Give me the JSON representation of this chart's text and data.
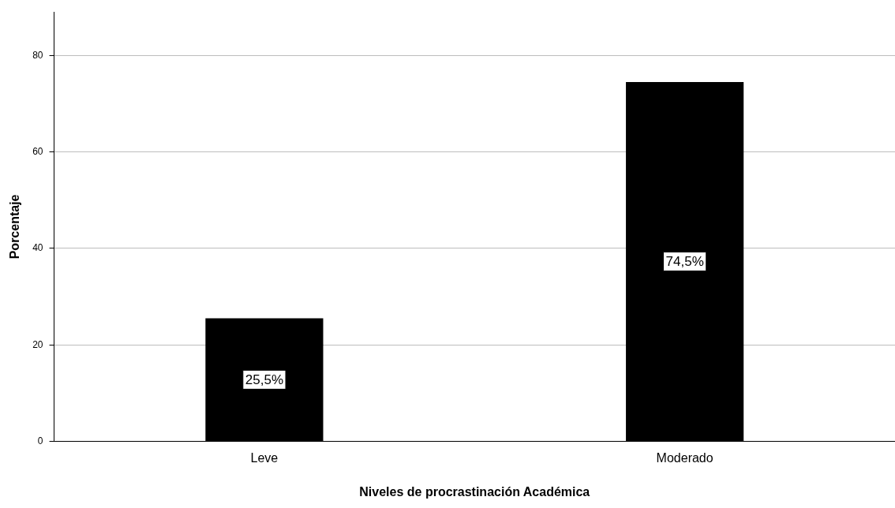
{
  "chart_data": {
    "type": "bar",
    "xlabel": "Niveles de procrastinación Académica",
    "ylabel": "Porcentaje",
    "categories": [
      "Leve",
      "Moderado"
    ],
    "values": [
      25.5,
      74.5
    ],
    "color": "#000000",
    "value_labels": [
      "25,5%",
      "74,5%"
    ],
    "ylim": [
      0,
      89
    ],
    "yticks": [
      0,
      20,
      40,
      60,
      80
    ],
    "grid": "y",
    "legend": false
  }
}
